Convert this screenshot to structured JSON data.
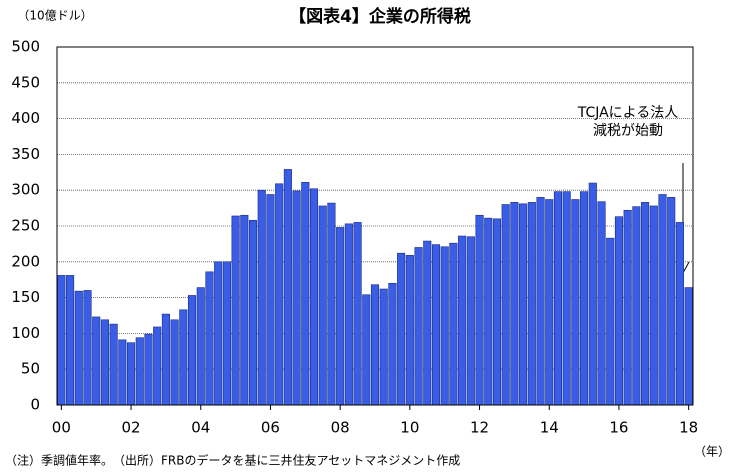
{
  "chart_data": {
    "type": "bar",
    "title": "【図表4】企業の所得税",
    "y_unit": "（10億ドル）",
    "x_unit": "（年）",
    "note": "（注）季調値年率。　（出所）FRBのデータを基に三井住友アセットマネジメント作成",
    "annotation": [
      "TCJAによる法人",
      "減税が始動"
    ],
    "categories": [
      "00",
      null,
      null,
      null,
      null,
      null,
      null,
      null,
      "02",
      null,
      null,
      null,
      null,
      null,
      null,
      null,
      "04",
      null,
      null,
      null,
      null,
      null,
      null,
      null,
      "06",
      null,
      null,
      null,
      null,
      null,
      null,
      null,
      "08",
      null,
      null,
      null,
      null,
      null,
      null,
      null,
      "10",
      null,
      null,
      null,
      null,
      null,
      null,
      null,
      "12",
      null,
      null,
      null,
      null,
      null,
      null,
      null,
      "14",
      null,
      null,
      null,
      null,
      null,
      null,
      null,
      "16",
      null,
      null,
      null,
      null,
      null,
      null,
      null,
      "18"
    ],
    "values": [
      181,
      181,
      159,
      160,
      123,
      119,
      113,
      91,
      87,
      94,
      99,
      109,
      127,
      119,
      133,
      153,
      164,
      186,
      200,
      200,
      264,
      265,
      258,
      300,
      294,
      309,
      329,
      299,
      311,
      302,
      278,
      282,
      248,
      253,
      255,
      154,
      168,
      162,
      170,
      212,
      209,
      220,
      229,
      224,
      221,
      226,
      236,
      235,
      265,
      261,
      260,
      280,
      283,
      281,
      283,
      290,
      287,
      298,
      298,
      287,
      298,
      310,
      284,
      233,
      263,
      272,
      277,
      283,
      278,
      294,
      290,
      255,
      164
    ],
    "color": "#3a5de6",
    "ylim": [
      0,
      500
    ],
    "yticks": [
      0,
      50,
      100,
      150,
      200,
      250,
      300,
      350,
      400,
      450,
      500
    ],
    "grid": true
  }
}
